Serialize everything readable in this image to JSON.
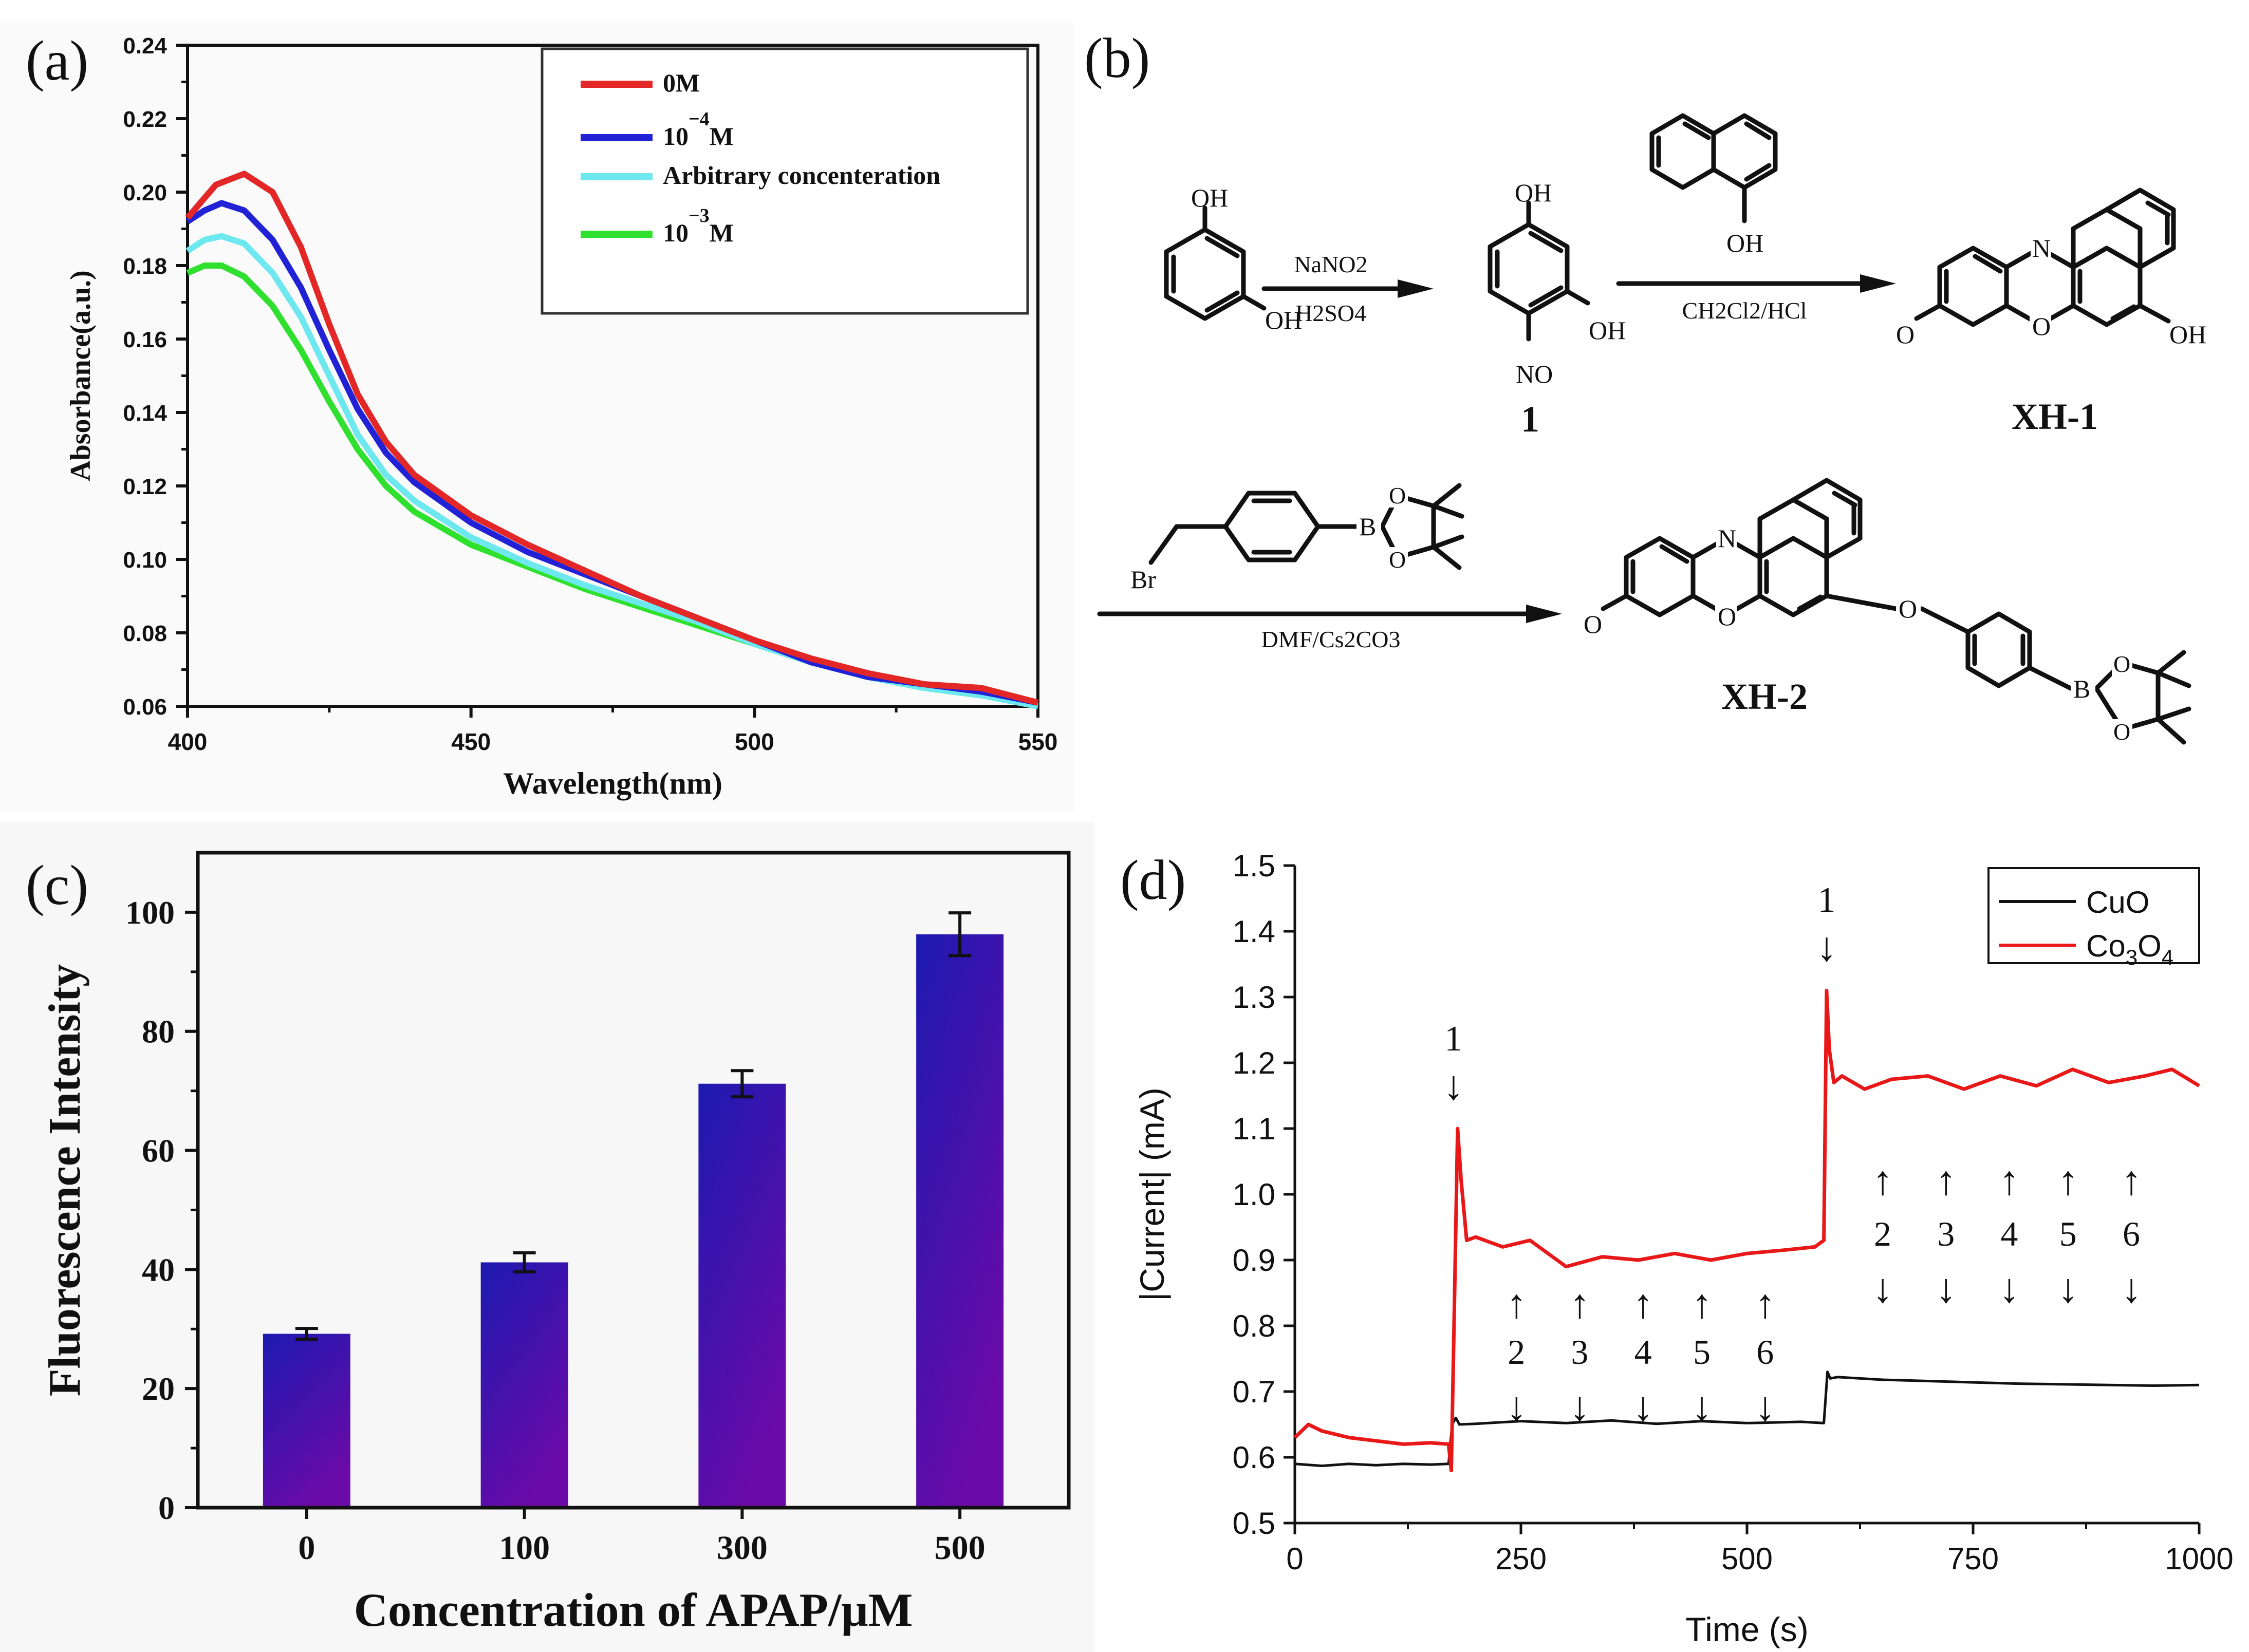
{
  "panels": {
    "a": {
      "label": "(a)"
    },
    "b": {
      "label": "(b)"
    },
    "c": {
      "label": "(c)"
    },
    "d": {
      "label": "(d)"
    }
  },
  "colors": {
    "a_0M": "#e32727",
    "a_1e4": "#2121d6",
    "a_arb": "#6de8ef",
    "a_1e3": "#2fe02f",
    "c_bar_top": "#1c1ab0",
    "c_bar_bottom": "#6a0aa8",
    "d_cuo": "#111111",
    "d_co3o4": "#e81818"
  },
  "scheme": {
    "reagent1_top": "NaNO2",
    "reagent1_bottom": "H2SO4",
    "compound1": "1",
    "reagent2": "CH2Cl2/HCl",
    "product1": "XH-1",
    "reagent3": "DMF/Cs2CO3",
    "product2": "XH-2",
    "atoms": {
      "oh": "OH",
      "no": "NO",
      "n": "N",
      "o": "O",
      "b": "B",
      "br": "Br"
    }
  },
  "chart_data": [
    {
      "panel": "a",
      "type": "line",
      "title": "",
      "xlabel": "Wavelength(nm)",
      "ylabel": "Absorbance(a.u.)",
      "xlim": [
        400,
        550
      ],
      "ylim": [
        0.06,
        0.24
      ],
      "xticks": [
        400,
        450,
        500,
        550
      ],
      "yticks": [
        0.06,
        0.08,
        0.1,
        0.12,
        0.14,
        0.16,
        0.18,
        0.2,
        0.22,
        0.24
      ],
      "xtick_labels": [
        "400",
        "450",
        "500",
        "550"
      ],
      "ytick_labels": [
        "0.06",
        "0.08",
        "0.10",
        "0.12",
        "0.14",
        "0.16",
        "0.18",
        "0.20",
        "0.22",
        "0.24"
      ],
      "legend_position": "top-right",
      "series": [
        {
          "name": "0M",
          "legend": [
            "0M"
          ],
          "x": [
            400,
            405,
            410,
            415,
            420,
            425,
            430,
            435,
            440,
            450,
            460,
            470,
            480,
            490,
            500,
            510,
            520,
            530,
            540,
            550
          ],
          "values": [
            0.193,
            0.202,
            0.205,
            0.2,
            0.185,
            0.164,
            0.145,
            0.132,
            0.123,
            0.112,
            0.104,
            0.097,
            0.09,
            0.084,
            0.078,
            0.073,
            0.069,
            0.066,
            0.065,
            0.061
          ]
        },
        {
          "name": "10-4M",
          "legend": [
            "10",
            "−4",
            "M"
          ],
          "x": [
            400,
            403,
            406,
            410,
            415,
            420,
            425,
            430,
            435,
            440,
            450,
            460,
            470,
            480,
            490,
            500,
            510,
            520,
            530,
            540,
            550
          ],
          "values": [
            0.192,
            0.195,
            0.197,
            0.195,
            0.187,
            0.174,
            0.157,
            0.141,
            0.129,
            0.121,
            0.11,
            0.102,
            0.096,
            0.09,
            0.084,
            0.078,
            0.072,
            0.068,
            0.066,
            0.064,
            0.061
          ]
        },
        {
          "name": "Arbitrary concenteration",
          "legend": [
            "Arbitrary concenteration"
          ],
          "x": [
            400,
            403,
            406,
            410,
            415,
            420,
            425,
            430,
            435,
            440,
            450,
            460,
            470,
            480,
            490,
            500,
            510,
            520,
            530,
            540,
            550
          ],
          "values": [
            0.184,
            0.187,
            0.188,
            0.186,
            0.178,
            0.166,
            0.15,
            0.134,
            0.123,
            0.116,
            0.106,
            0.099,
            0.093,
            0.088,
            0.083,
            0.077,
            0.072,
            0.068,
            0.065,
            0.063,
            0.06
          ]
        },
        {
          "name": "10-3M",
          "legend": [
            "10",
            "−3",
            "M"
          ],
          "x": [
            400,
            403,
            406,
            410,
            415,
            420,
            425,
            430,
            435,
            440,
            450,
            460,
            470,
            480,
            490,
            500,
            510,
            520,
            530,
            540,
            550
          ],
          "values": [
            0.178,
            0.18,
            0.18,
            0.177,
            0.169,
            0.157,
            0.143,
            0.13,
            0.12,
            0.113,
            0.104,
            0.098,
            0.092,
            0.087,
            0.082,
            0.077,
            0.072,
            0.068,
            0.065,
            0.063,
            0.061
          ]
        }
      ]
    },
    {
      "panel": "c",
      "type": "bar",
      "title": "",
      "xlabel": "Concentration of APAP/μM",
      "ylabel": "Fluorescence Intensity",
      "categories": [
        "0",
        "100",
        "300",
        "500"
      ],
      "values": [
        29.2,
        41.2,
        71.2,
        96.3
      ],
      "errors": [
        0.9,
        1.6,
        2.2,
        3.6
      ],
      "ylim": [
        0,
        110
      ],
      "yticks": [
        0,
        20,
        40,
        60,
        80,
        100
      ],
      "ytick_labels": [
        "0",
        "20",
        "40",
        "60",
        "80",
        "100"
      ]
    },
    {
      "panel": "d",
      "type": "line",
      "title": "",
      "xlabel": "Time (s)",
      "ylabel": "|Current| (mA)",
      "xlim": [
        0,
        1000
      ],
      "ylim": [
        0.5,
        1.5
      ],
      "xticks": [
        0,
        250,
        500,
        750,
        1000
      ],
      "xtick_labels": [
        "0",
        "250",
        "500",
        "750",
        "1000"
      ],
      "yticks": [
        0.5,
        0.6,
        0.7,
        0.8,
        0.9,
        1.0,
        1.1,
        1.2,
        1.3,
        1.4,
        1.5
      ],
      "ytick_labels": [
        "0.5",
        "0.6",
        "0.7",
        "0.8",
        "0.9",
        "1.0",
        "1.1",
        "1.2",
        "1.3",
        "1.4",
        "1.5"
      ],
      "legend_position": "top-right",
      "series": [
        {
          "name": "CuO",
          "legend_main": "CuO",
          "legend_parts": [],
          "x": [
            0,
            30,
            60,
            90,
            120,
            150,
            170,
            174,
            178,
            182,
            200,
            250,
            300,
            350,
            400,
            450,
            500,
            560,
            585,
            589,
            592,
            600,
            650,
            700,
            750,
            800,
            850,
            900,
            950,
            1000
          ],
          "values": [
            0.59,
            0.587,
            0.59,
            0.588,
            0.59,
            0.589,
            0.59,
            0.65,
            0.66,
            0.65,
            0.651,
            0.655,
            0.652,
            0.656,
            0.651,
            0.655,
            0.652,
            0.654,
            0.652,
            0.73,
            0.72,
            0.722,
            0.718,
            0.716,
            0.714,
            0.712,
            0.711,
            0.71,
            0.709,
            0.71
          ]
        },
        {
          "name": "Co3O4",
          "legend_main": "Co",
          "legend_parts": [
            "3",
            "O",
            "4"
          ],
          "x": [
            0,
            15,
            30,
            60,
            90,
            120,
            150,
            170,
            173,
            176,
            180,
            184,
            190,
            200,
            230,
            260,
            300,
            340,
            380,
            420,
            460,
            500,
            540,
            575,
            585,
            588,
            591,
            596,
            605,
            630,
            660,
            700,
            740,
            780,
            820,
            860,
            900,
            940,
            970,
            1000
          ],
          "values": [
            0.63,
            0.65,
            0.64,
            0.63,
            0.625,
            0.62,
            0.622,
            0.62,
            0.58,
            0.8,
            1.1,
            1.02,
            0.93,
            0.935,
            0.92,
            0.93,
            0.89,
            0.905,
            0.9,
            0.91,
            0.9,
            0.91,
            0.915,
            0.92,
            0.93,
            1.31,
            1.22,
            1.17,
            1.18,
            1.16,
            1.175,
            1.18,
            1.16,
            1.18,
            1.165,
            1.19,
            1.17,
            1.18,
            1.19,
            1.165
          ]
        }
      ],
      "annotations": [
        {
          "text": "1",
          "arrow": "↓",
          "x": 180
        },
        {
          "text": "1",
          "arrow": "↓",
          "x": 588
        },
        {
          "group": "upper",
          "x": [
            650,
            720,
            790,
            855,
            925
          ],
          "labels": [
            "2",
            "3",
            "4",
            "5",
            "6"
          ],
          "arrow_up": "↑",
          "arrow_down": "↓"
        },
        {
          "group": "lower",
          "x": [
            245,
            315,
            385,
            450,
            520
          ],
          "labels": [
            "2",
            "3",
            "4",
            "5",
            "6"
          ],
          "arrow_up": "↑",
          "arrow_down": "↓"
        }
      ]
    }
  ]
}
